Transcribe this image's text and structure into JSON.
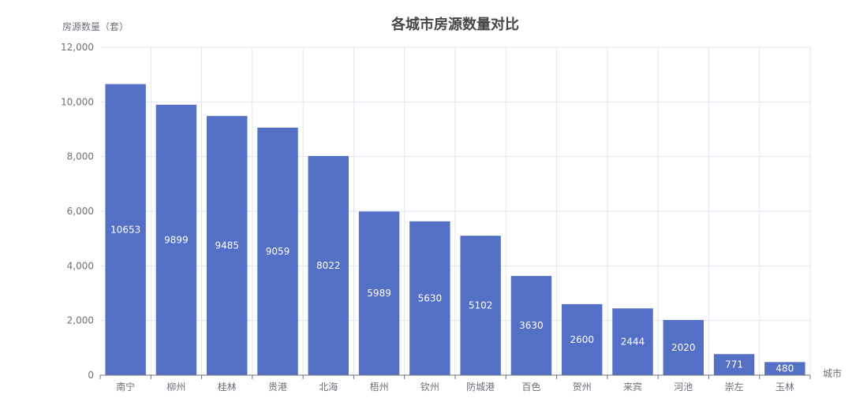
{
  "chart_data": {
    "type": "bar",
    "title": "各城市房源数量对比",
    "xlabel": "城市",
    "ylabel": "房源数量（套）",
    "categories": [
      "南宁",
      "柳州",
      "桂林",
      "贵港",
      "北海",
      "梧州",
      "钦州",
      "防城港",
      "百色",
      "贺州",
      "来宾",
      "河池",
      "崇左",
      "玉林"
    ],
    "values": [
      10653,
      9899,
      9485,
      9059,
      8022,
      5989,
      5630,
      5102,
      3630,
      2600,
      2444,
      2020,
      771,
      480
    ],
    "ylim": [
      0,
      12000
    ],
    "yticks": [
      0,
      2000,
      4000,
      6000,
      8000,
      10000,
      12000
    ],
    "ytick_labels": [
      "0",
      "2,000",
      "4,000",
      "6,000",
      "8,000",
      "10,000",
      "12,000"
    ],
    "data_labels": true,
    "grid": true,
    "legend": "none",
    "colors": {
      "bar": "#5470c6"
    }
  }
}
